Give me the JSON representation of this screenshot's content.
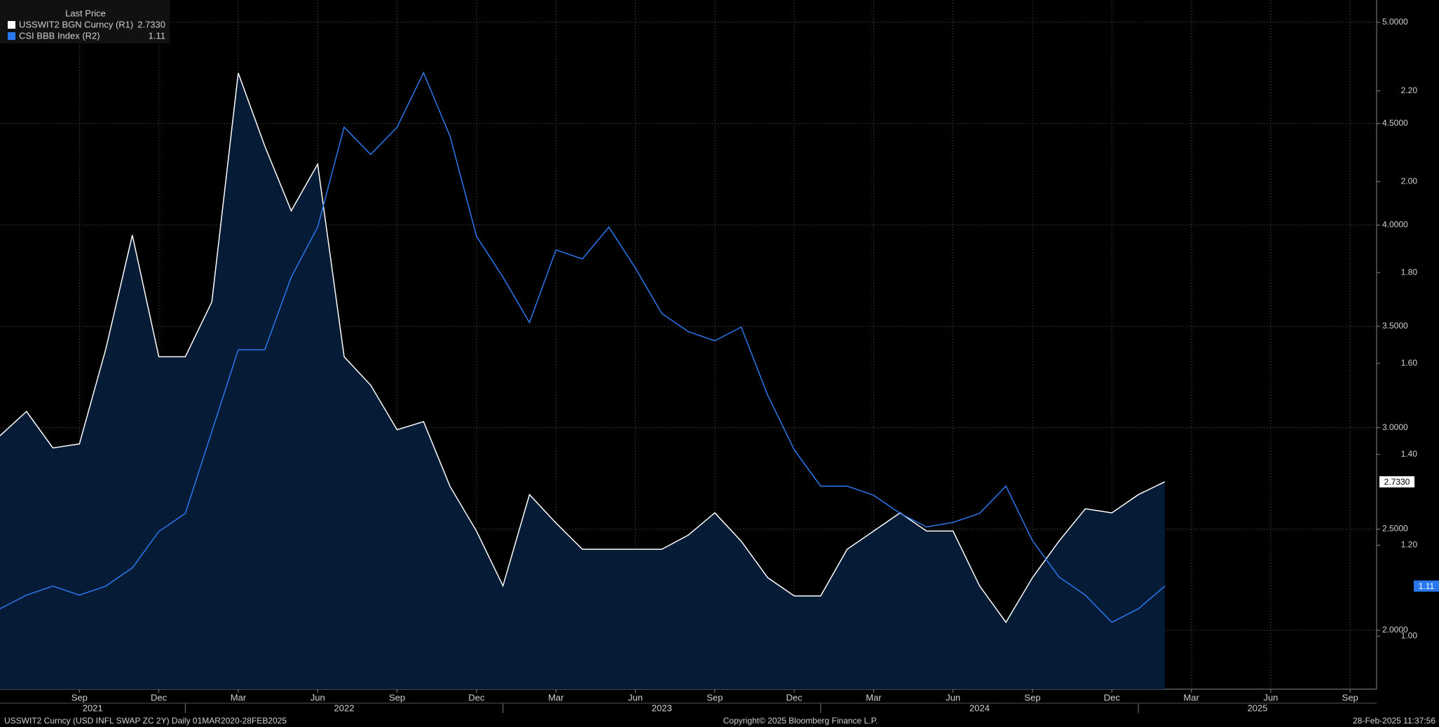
{
  "chart_data": {
    "type": "line",
    "legend_title": "Last Price",
    "x": [
      "2021-06",
      "2021-07",
      "2021-08",
      "2021-09",
      "2021-10",
      "2021-11",
      "2021-12",
      "2022-01",
      "2022-02",
      "2022-03",
      "2022-04",
      "2022-05",
      "2022-06",
      "2022-07",
      "2022-08",
      "2022-09",
      "2022-10",
      "2022-11",
      "2022-12",
      "2023-01",
      "2023-02",
      "2023-03",
      "2023-04",
      "2023-05",
      "2023-06",
      "2023-07",
      "2023-08",
      "2023-09",
      "2023-10",
      "2023-11",
      "2023-12",
      "2024-01",
      "2024-02",
      "2024-03",
      "2024-04",
      "2024-05",
      "2024-06",
      "2024-07",
      "2024-08",
      "2024-09",
      "2024-10",
      "2024-11",
      "2024-12",
      "2025-01",
      "2025-02"
    ],
    "series": [
      {
        "name": "USSWIT2 BGN Curncy  (R1)",
        "color": "#ffffff",
        "fill": "#061b36",
        "axis": "y",
        "values": [
          2.96,
          3.08,
          2.9,
          2.92,
          3.39,
          3.95,
          3.35,
          3.35,
          3.62,
          4.75,
          4.39,
          4.07,
          4.3,
          3.35,
          3.21,
          2.99,
          3.03,
          2.71,
          2.49,
          2.22,
          2.67,
          2.53,
          2.4,
          2.4,
          2.4,
          2.4,
          2.47,
          2.58,
          2.44,
          2.26,
          2.17,
          2.17,
          2.4,
          2.49,
          2.58,
          2.49,
          2.49,
          2.22,
          2.04,
          2.26,
          2.44,
          2.6,
          2.58,
          2.67,
          2.733
        ],
        "value_labels": [
          null,
          null,
          null,
          null,
          null,
          null,
          null,
          null,
          null,
          null,
          null,
          null,
          null,
          null,
          null,
          null,
          null,
          null,
          null,
          null,
          null,
          null,
          null,
          null,
          null,
          null,
          null,
          null,
          null,
          null,
          null,
          null,
          null,
          null,
          null,
          null,
          null,
          null,
          null,
          null,
          null,
          null,
          null,
          null,
          "2.7330"
        ]
      },
      {
        "name": "CSI BBB Index  (R2)",
        "color": "#2a78ee",
        "axis": "y2",
        "values": [
          1.06,
          1.09,
          1.11,
          1.09,
          1.11,
          1.15,
          1.23,
          1.27,
          1.45,
          1.63,
          1.63,
          1.79,
          1.9,
          2.12,
          2.06,
          2.12,
          2.24,
          2.1,
          1.88,
          1.79,
          1.69,
          1.85,
          1.83,
          1.9,
          1.81,
          1.71,
          1.67,
          1.65,
          1.68,
          1.53,
          1.41,
          1.33,
          1.33,
          1.31,
          1.27,
          1.24,
          1.25,
          1.27,
          1.33,
          1.21,
          1.13,
          1.09,
          1.03,
          1.06,
          1.11
        ]
      }
    ],
    "xlim": [
      "2021-06",
      "2025-10"
    ],
    "xticks": [
      {
        "value": "2021-09",
        "label": "Sep"
      },
      {
        "value": "2021-12",
        "label": "Dec"
      },
      {
        "value": "2022-03",
        "label": "Mar"
      },
      {
        "value": "2022-06",
        "label": "Jun"
      },
      {
        "value": "2022-09",
        "label": "Sep"
      },
      {
        "value": "2022-12",
        "label": "Dec"
      },
      {
        "value": "2023-03",
        "label": "Mar"
      },
      {
        "value": "2023-06",
        "label": "Jun"
      },
      {
        "value": "2023-09",
        "label": "Sep"
      },
      {
        "value": "2023-12",
        "label": "Dec"
      },
      {
        "value": "2024-03",
        "label": "Mar"
      },
      {
        "value": "2024-06",
        "label": "Jun"
      },
      {
        "value": "2024-09",
        "label": "Sep"
      },
      {
        "value": "2024-12",
        "label": "Dec"
      },
      {
        "value": "2025-03",
        "label": "Mar"
      },
      {
        "value": "2025-06",
        "label": "Jun"
      },
      {
        "value": "2025-09",
        "label": "Sep"
      }
    ],
    "years": [
      2021,
      2022,
      2023,
      2024,
      2025
    ],
    "ylim": [
      1.71,
      5.11
    ],
    "yticks": [
      {
        "value": 2,
        "label": "2.0000"
      },
      {
        "value": 2.5,
        "label": "2.5000"
      },
      {
        "value": 3,
        "label": "3.0000"
      },
      {
        "value": 3.5,
        "label": "3.5000"
      },
      {
        "value": 4,
        "label": "4.0000"
      },
      {
        "value": 4.5,
        "label": "4.5000"
      },
      {
        "value": 5,
        "label": "5.0000"
      }
    ],
    "y2lim": [
      0.883,
      2.4
    ],
    "y2ticks": [
      {
        "value": 1,
        "label": "1.00"
      },
      {
        "value": 1.2,
        "label": "1.20"
      },
      {
        "value": 1.4,
        "label": "1.40"
      },
      {
        "value": 1.6,
        "label": "1.60"
      },
      {
        "value": 1.8,
        "label": "1.80"
      },
      {
        "value": 2,
        "label": "2.00"
      },
      {
        "value": 2.2,
        "label": "2.20"
      }
    ],
    "grid": true,
    "legend_position": "top-left",
    "footer_left": "USSWIT2 Curncy (USD INFL SWAP ZC 2Y)  Daily 01MAR2020-28FEB2025",
    "footer_center": "Copyright© 2025 Bloomberg Finance L.P.",
    "footer_right": "28-Feb-2025 11:37:56"
  }
}
